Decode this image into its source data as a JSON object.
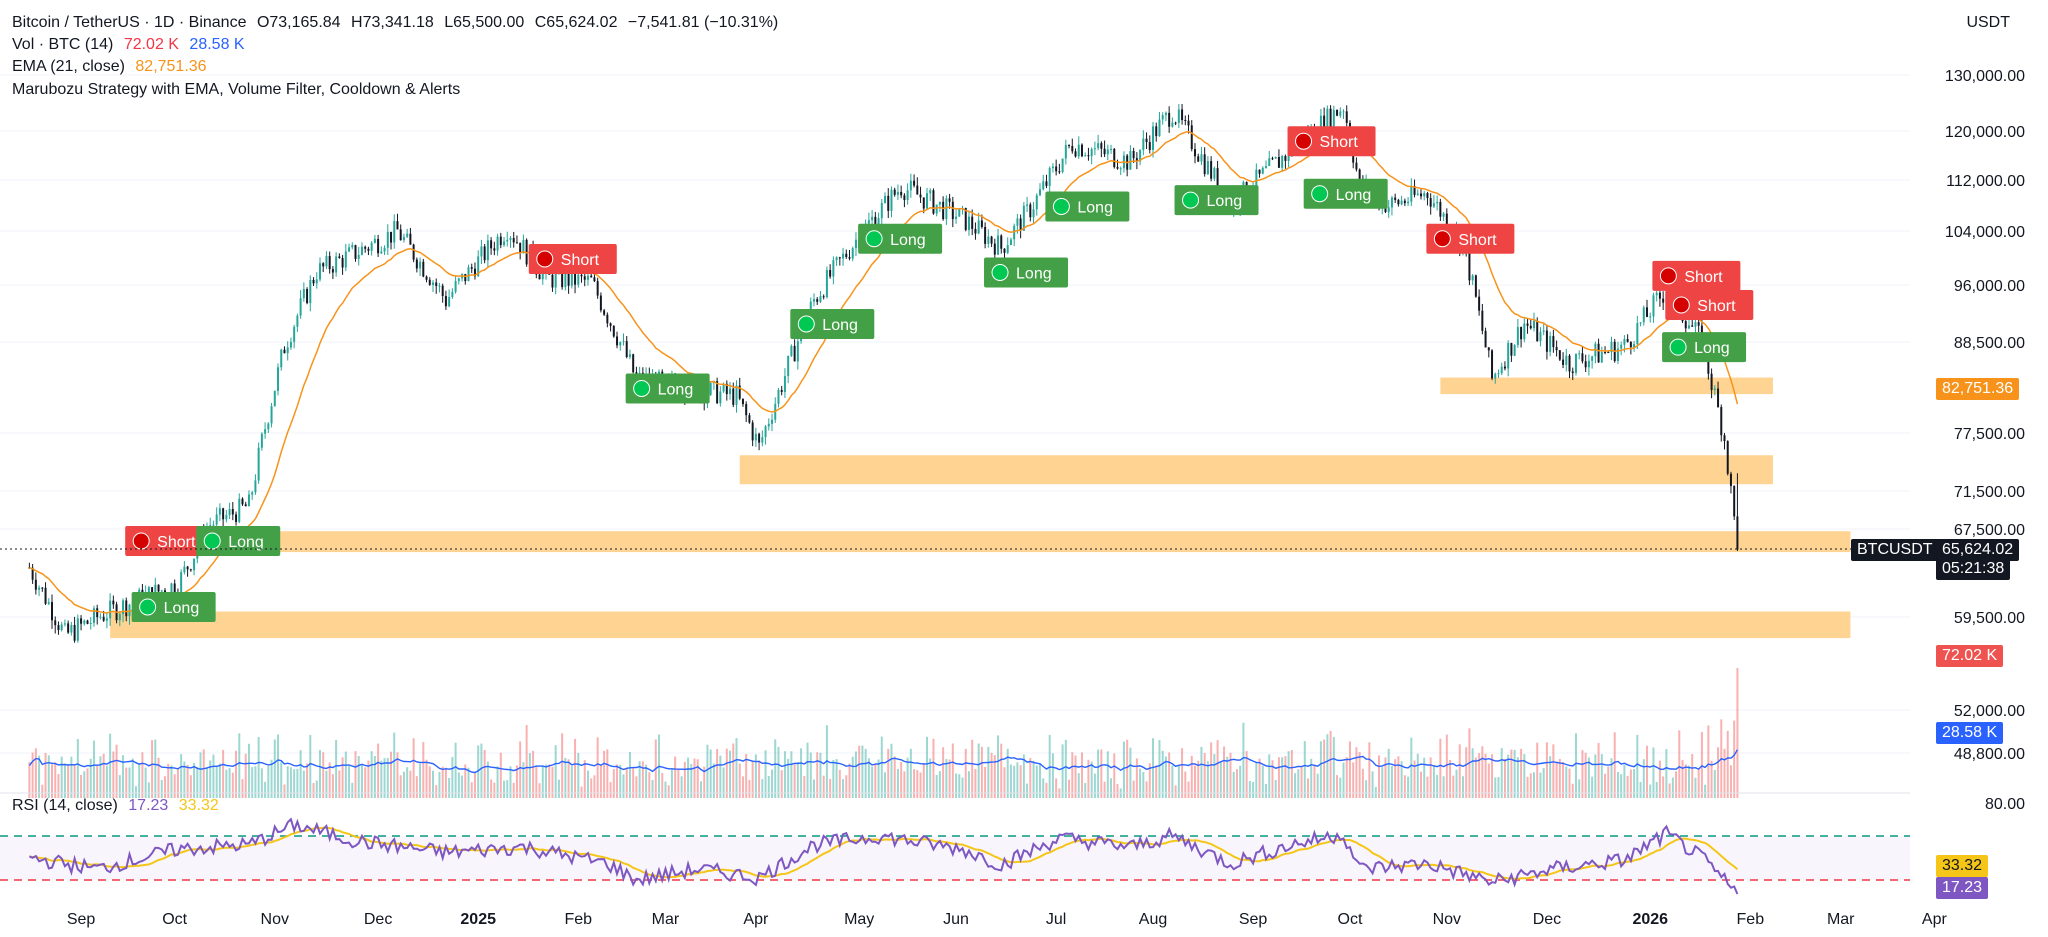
{
  "header": {
    "title": "Bitcoin / TetherUS · 1D · Binance",
    "ohlc": {
      "o": "O73,165.84",
      "h": "H73,341.18",
      "l": "L65,500.00",
      "c": "C65,624.02",
      "chg": "−7,541.81 (−10.31%)"
    },
    "vol": {
      "label": "Vol · BTC (14)",
      "v1": "72.02 K",
      "v2": "28.58 K"
    },
    "ema": {
      "label": "EMA (21, close)",
      "value": "82,751.36"
    },
    "strategy": "Marubozu Strategy with EMA, Volume Filter, Cooldown & Alerts"
  },
  "rsi_header": {
    "label": "RSI (14, close)",
    "v1": "17.23",
    "v2": "33.32"
  },
  "axis_unit": "USDT",
  "price_tags": {
    "ema": "82,751.36",
    "symbol": "BTCUSDT",
    "price": "65,624.02",
    "countdown": "05:21:38",
    "vol": "72.02 K",
    "volma": "28.58 K",
    "rsi_ma": "33.32",
    "rsi": "17.23"
  },
  "colors": {
    "up": "#26a69a",
    "down": "#ef5350",
    "ema": "#f7931a",
    "zone": "#ffcc80",
    "long": "#43a047",
    "short": "#ef4444",
    "rsi": "#7e57c2",
    "rsi_ma": "#f5c518",
    "vol_ma": "#2962ff"
  },
  "chart_data": {
    "type": "line",
    "title": "Bitcoin / TetherUS · 1D · Binance",
    "y_ticks": [
      130000,
      120000,
      112000,
      104000,
      96000,
      88500,
      77500,
      71500,
      67500,
      59500,
      52000,
      48800
    ],
    "y_tick_labels": [
      "130,000.00",
      "120,000.00",
      "112,000.00",
      "104,000.00",
      "96,000.00",
      "88,500.00",
      "77,500.00",
      "71,500.00",
      "67,500.00",
      "59,500.00",
      "52,000.00",
      "48,800.00"
    ],
    "x_labels": [
      "Sep",
      "Oct",
      "Nov",
      "Dec",
      "2025",
      "Feb",
      "Mar",
      "Apr",
      "May",
      "Jun",
      "Jul",
      "Aug",
      "Sep",
      "Oct",
      "Nov",
      "Dec",
      "2026",
      "Feb",
      "Mar",
      "Apr"
    ],
    "price_series": {
      "name": "BTCUSDT",
      "dates": [
        "2024-08-25",
        "2024-09-05",
        "2024-09-15",
        "2024-10-01",
        "2024-10-10",
        "2024-10-20",
        "2024-11-01",
        "2024-11-12",
        "2024-11-22",
        "2024-12-05",
        "2024-12-17",
        "2025-01-01",
        "2025-01-20",
        "2025-02-01",
        "2025-02-15",
        "2025-03-01",
        "2025-03-15",
        "2025-04-01",
        "2025-04-08",
        "2025-04-25",
        "2025-05-10",
        "2025-05-22",
        "2025-06-10",
        "2025-06-22",
        "2025-07-01",
        "2025-07-14",
        "2025-08-01",
        "2025-08-14",
        "2025-09-01",
        "2025-09-20",
        "2025-10-06",
        "2025-10-11",
        "2025-10-20",
        "2025-11-01",
        "2025-11-12",
        "2025-11-21",
        "2025-12-01",
        "2025-12-15",
        "2026-01-01",
        "2026-01-14",
        "2026-01-25",
        "2026-02-01",
        "2026-02-05"
      ],
      "close": [
        64000,
        58000,
        59500,
        61500,
        62500,
        68000,
        70000,
        88000,
        98000,
        101000,
        104000,
        94000,
        104500,
        97000,
        96500,
        84000,
        83000,
        82000,
        76000,
        94000,
        104000,
        111000,
        106000,
        101500,
        107500,
        118000,
        115000,
        123500,
        108000,
        117000,
        124500,
        111000,
        108000,
        110000,
        102000,
        84000,
        91000,
        86000,
        88000,
        95500,
        88500,
        77000,
        65624
      ]
    },
    "ema_series": {
      "name": "EMA (21, close)",
      "period": 21
    },
    "signals": [
      {
        "label": "Short",
        "date": "2024-09-28",
        "price": 66500
      },
      {
        "label": "Long",
        "date": "2024-09-30",
        "price": 60500
      },
      {
        "label": "Long",
        "date": "2024-10-20",
        "price": 66500
      },
      {
        "label": "Short",
        "date": "2025-01-31",
        "price": 100000
      },
      {
        "label": "Long",
        "date": "2025-03-02",
        "price": 83000
      },
      {
        "label": "Long",
        "date": "2025-04-22",
        "price": 91000
      },
      {
        "label": "Long",
        "date": "2025-05-13",
        "price": 103000
      },
      {
        "label": "Long",
        "date": "2025-06-21",
        "price": 98000
      },
      {
        "label": "Long",
        "date": "2025-07-10",
        "price": 108000
      },
      {
        "label": "Long",
        "date": "2025-08-19",
        "price": 109000
      },
      {
        "label": "Short",
        "date": "2025-09-23",
        "price": 118500
      },
      {
        "label": "Long",
        "date": "2025-09-28",
        "price": 110000
      },
      {
        "label": "Short",
        "date": "2025-11-05",
        "price": 103000
      },
      {
        "label": "Short",
        "date": "2026-01-14",
        "price": 97500
      },
      {
        "label": "Short",
        "date": "2026-01-18",
        "price": 93500
      },
      {
        "label": "Long",
        "date": "2026-01-17",
        "price": 88000
      }
    ],
    "zones": [
      {
        "from": "2025-11-05",
        "to": "2026-02-16",
        "low": 82200,
        "high": 84200
      },
      {
        "from": "2025-04-02",
        "to": "2026-02-16",
        "low": 72200,
        "high": 75200
      },
      {
        "from": "2024-10-07",
        "to": "2026-03-12",
        "low": 65400,
        "high": 67300
      },
      {
        "from": "2024-09-19",
        "to": "2026-03-12",
        "low": 57800,
        "high": 60000
      }
    ],
    "volume": {
      "latest": 72.02,
      "ma": 28.58,
      "unit": "K"
    },
    "rsi": {
      "latest": 17.23,
      "ma_latest": 33.32,
      "levels": [
        70,
        30
      ],
      "ticks": [
        80.0
      ],
      "dates": [
        "2024-08-25",
        "2024-09-15",
        "2024-10-10",
        "2024-11-01",
        "2024-11-15",
        "2024-12-05",
        "2025-01-01",
        "2025-01-25",
        "2025-02-20",
        "2025-03-01",
        "2025-03-20",
        "2025-04-08",
        "2025-04-25",
        "2025-05-15",
        "2025-06-10",
        "2025-06-22",
        "2025-07-10",
        "2025-08-01",
        "2025-08-14",
        "2025-09-01",
        "2025-09-20",
        "2025-10-06",
        "2025-10-11",
        "2025-11-01",
        "2025-11-21",
        "2025-12-10",
        "2026-01-01",
        "2026-01-14",
        "2026-01-25",
        "2026-02-05"
      ],
      "values": [
        50,
        40,
        58,
        62,
        80,
        65,
        55,
        60,
        45,
        30,
        40,
        32,
        62,
        70,
        58,
        44,
        68,
        60,
        70,
        45,
        62,
        72,
        40,
        45,
        28,
        40,
        48,
        72,
        50,
        17
      ]
    }
  }
}
